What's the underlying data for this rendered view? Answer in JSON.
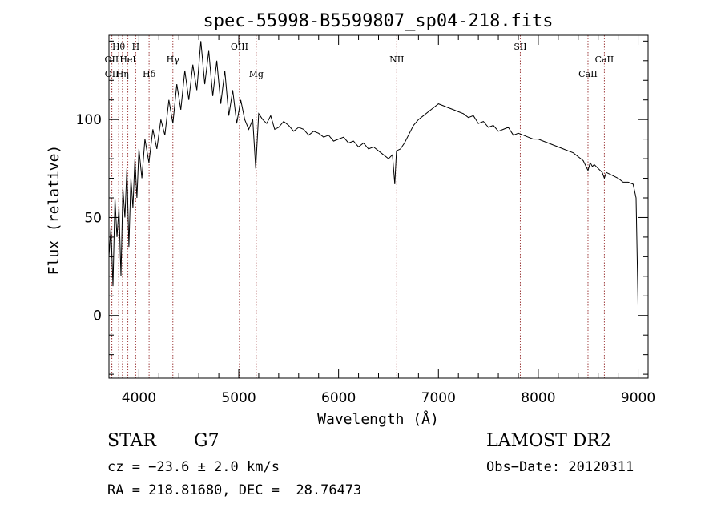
{
  "chart_data": {
    "type": "line",
    "title": "spec-55998-B5599807_sp04-218.fits",
    "xlabel": "Wavelength (Å)",
    "ylabel": "Flux (relative)",
    "xlim": [
      3700,
      9100
    ],
    "ylim": [
      -32,
      143
    ],
    "x_ticks": [
      4000,
      5000,
      6000,
      7000,
      8000,
      9000
    ],
    "y_ticks": [
      0,
      50,
      100
    ],
    "grid": false,
    "series": [
      {
        "x": [
          3700,
          3720,
          3740,
          3760,
          3780,
          3800,
          3820,
          3840,
          3860,
          3880,
          3900,
          3920,
          3940,
          3960,
          3980,
          4000,
          4030,
          4060,
          4100,
          4140,
          4180,
          4220,
          4260,
          4300,
          4340,
          4380,
          4420,
          4460,
          4500,
          4540,
          4580,
          4620,
          4660,
          4700,
          4740,
          4780,
          4820,
          4860,
          4900,
          4940,
          4980,
          5020,
          5060,
          5100,
          5140,
          5170,
          5200,
          5240,
          5280,
          5320,
          5360,
          5400,
          5450,
          5500,
          5550,
          5600,
          5650,
          5700,
          5750,
          5800,
          5850,
          5900,
          5950,
          6000,
          6050,
          6100,
          6150,
          6200,
          6250,
          6300,
          6350,
          6400,
          6450,
          6500,
          6540,
          6563,
          6580,
          6620,
          6660,
          6700,
          6750,
          6800,
          6850,
          6900,
          6950,
          7000,
          7050,
          7100,
          7150,
          7200,
          7250,
          7300,
          7350,
          7400,
          7450,
          7500,
          7550,
          7600,
          7650,
          7700,
          7750,
          7800,
          7850,
          7900,
          7950,
          8000,
          8050,
          8100,
          8150,
          8200,
          8250,
          8300,
          8350,
          8400,
          8450,
          8498,
          8520,
          8542,
          8560,
          8600,
          8640,
          8662,
          8680,
          8720,
          8760,
          8800,
          8850,
          8900,
          8950,
          8980,
          9000
        ],
        "y": [
          30,
          45,
          15,
          60,
          40,
          55,
          20,
          65,
          50,
          75,
          35,
          70,
          55,
          80,
          60,
          85,
          70,
          90,
          78,
          95,
          85,
          100,
          92,
          110,
          98,
          118,
          105,
          125,
          110,
          128,
          115,
          140,
          118,
          135,
          112,
          130,
          108,
          125,
          102,
          115,
          98,
          110,
          100,
          95,
          100,
          75,
          103,
          100,
          98,
          102,
          95,
          96,
          99,
          97,
          94,
          96,
          95,
          92,
          94,
          93,
          91,
          92,
          89,
          90,
          91,
          88,
          89,
          86,
          88,
          85,
          86,
          84,
          82,
          80,
          82,
          67,
          84,
          85,
          88,
          92,
          97,
          100,
          102,
          104,
          106,
          108,
          107,
          106,
          105,
          104,
          103,
          101,
          102,
          98,
          99,
          96,
          97,
          94,
          95,
          96,
          92,
          93,
          92,
          91,
          90,
          90,
          89,
          88,
          87,
          86,
          85,
          84,
          83,
          81,
          79,
          74,
          78,
          76,
          77,
          75,
          73,
          70,
          73,
          72,
          71,
          70,
          68,
          68,
          67,
          60,
          5
        ]
      }
    ],
    "line_markers": [
      {
        "label": "Hθ",
        "x": 3797
      },
      {
        "label": "H",
        "x": 3968
      },
      {
        "label": "OII",
        "x": 3727
      },
      {
        "label": "HeI",
        "x": 3889
      },
      {
        "label": "OII",
        "x": 3729
      },
      {
        "label": "Hη",
        "x": 3835
      },
      {
        "label": "Hγ",
        "x": 4340
      },
      {
        "label": "Hδ",
        "x": 4102
      },
      {
        "label": "OIII",
        "x": 5007
      },
      {
        "label": "Mg",
        "x": 5175
      },
      {
        "label": "NII",
        "x": 6583
      },
      {
        "label": "SII",
        "x": 7820
      },
      {
        "label": "CaII",
        "x": 8662
      },
      {
        "label": "CaII",
        "x": 8498
      }
    ]
  },
  "info": {
    "object_class": "STAR",
    "subclass": "G7",
    "redshift": "cz = −23.6 ± 2.0 km/s",
    "coords": "RA = 218.81680, DEC =  28.76473",
    "survey": "LAMOST DR2",
    "obs_date": "Obs−Date: 20120311"
  },
  "colors": {
    "spectrum": "#000000",
    "marker_line": "#a04040",
    "axis": "#000000"
  }
}
